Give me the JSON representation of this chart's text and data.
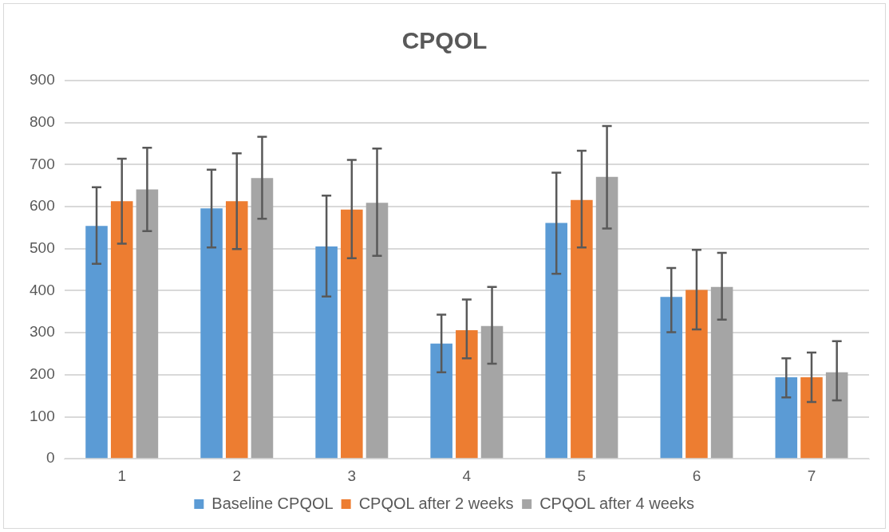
{
  "chart_data": {
    "type": "bar",
    "title": "CPQOL",
    "categories": [
      "1",
      "2",
      "3",
      "4",
      "5",
      "6",
      "7"
    ],
    "series": [
      {
        "name": "Baseline CPQOL",
        "color": "#5b9bd5",
        "values": [
          554,
          596,
          505,
          274,
          561,
          385,
          194
        ],
        "errors": [
          [
            464,
            646
          ],
          [
            503,
            688
          ],
          [
            386,
            626
          ],
          [
            206,
            343
          ],
          [
            440,
            681
          ],
          [
            301,
            454
          ],
          [
            146,
            239
          ]
        ]
      },
      {
        "name": "CPQOL after 2 weeks",
        "color": "#ed7d31",
        "values": [
          613,
          613,
          593,
          306,
          616,
          402,
          194
        ],
        "errors": [
          [
            512,
            714
          ],
          [
            499,
            727
          ],
          [
            477,
            711
          ],
          [
            239,
            379
          ],
          [
            503,
            733
          ],
          [
            308,
            497
          ],
          [
            135,
            253
          ]
        ]
      },
      {
        "name": "CPQOL after 4 weeks",
        "color": "#a5a5a5",
        "values": [
          641,
          668,
          609,
          316,
          671,
          409,
          206
        ],
        "errors": [
          [
            542,
            740
          ],
          [
            571,
            766
          ],
          [
            483,
            738
          ],
          [
            226,
            409
          ],
          [
            548,
            792
          ],
          [
            331,
            490
          ],
          [
            139,
            280
          ]
        ]
      }
    ],
    "ylim": [
      0,
      900
    ],
    "yticks": [
      0,
      100,
      200,
      300,
      400,
      500,
      600,
      700,
      800,
      900
    ],
    "grid": "y",
    "legend": "bottom"
  }
}
